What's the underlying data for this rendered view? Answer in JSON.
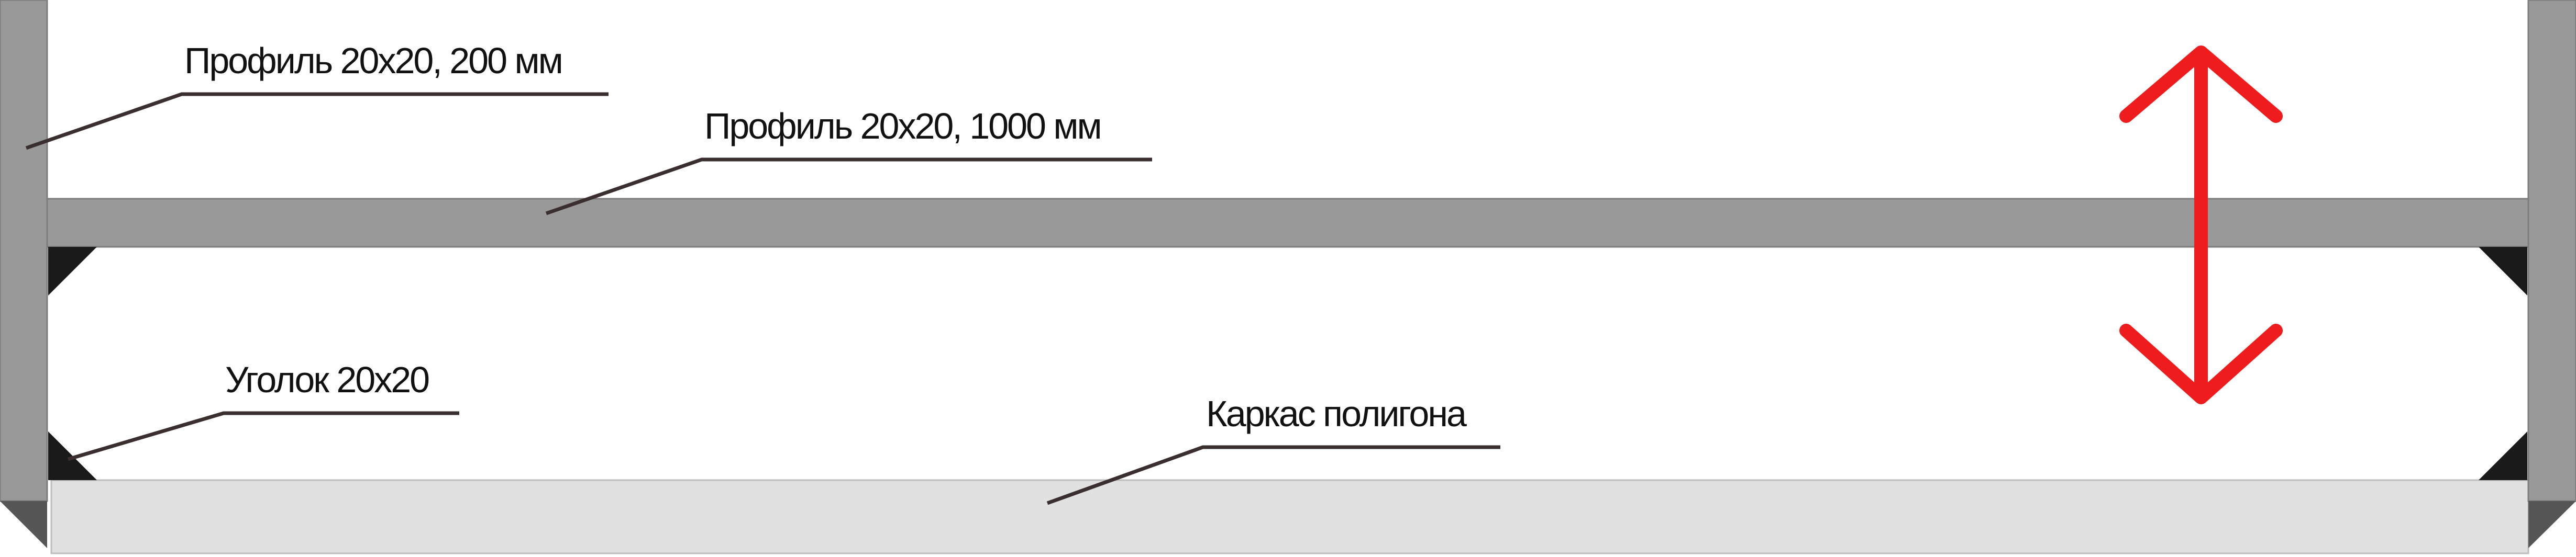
{
  "labels": {
    "profile_200": "Профиль 20х20, 200 мм",
    "profile_1000": "Профиль 20х20, 1000 мм",
    "corner": "Уголок 20х20",
    "frame": "Каркас полигона"
  },
  "icons": {
    "adjust_arrow": "double-arrow-vertical"
  },
  "colors": {
    "profile": "#999999",
    "frame": "#e1e1e1",
    "corner": "#1a1a1a",
    "arrow": "#ee1c1c",
    "leader": "#3a2e2e"
  }
}
